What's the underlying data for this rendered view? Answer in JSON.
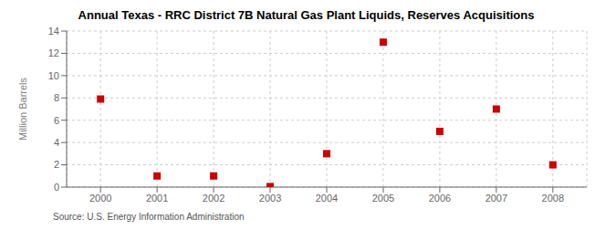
{
  "chart_data": {
    "type": "scatter",
    "title": "Annual Texas - RRC District 7B Natural Gas Plant Liquids, Reserves Acquisitions",
    "y_label": "Million Barrels",
    "annotation": "Source: U.S. Energy Information Administration",
    "x": [
      2000,
      2001,
      2002,
      2003,
      2004,
      2005,
      2006,
      2007,
      2008
    ],
    "values": [
      7.9,
      1.0,
      1.0,
      0.05,
      3.0,
      13.0,
      5.0,
      7.0,
      2.0
    ],
    "xlim": [
      1999.4,
      2008.6
    ],
    "ylim": [
      0,
      14
    ],
    "xticks": [
      2000,
      2001,
      2002,
      2003,
      2004,
      2005,
      2006,
      2007,
      2008
    ],
    "yticks": [
      0,
      2,
      4,
      6,
      8,
      10,
      12,
      14
    ],
    "color": "#cc0000",
    "marker": "square",
    "grid": true
  }
}
